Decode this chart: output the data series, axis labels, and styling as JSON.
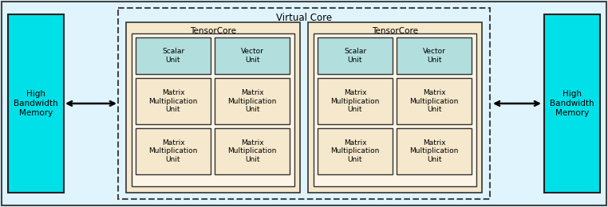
{
  "bg_color": "#dff4fc",
  "outer_rect_color": "#dff4fc",
  "outer_border_color": "#444444",
  "hbm_color": "#00e0e8",
  "hbm_border": "#222222",
  "hbm_text": "High\nBandwidth\nMemory",
  "virtual_core_bg": "#dff4fc",
  "virtual_core_border": "#444444",
  "virtual_core_label": "Virtual Core",
  "tensor_core_bg": "#f5e8cc",
  "tensor_core_border": "#333333",
  "tensor_core_label": "TensorCore",
  "inner_grid_bg": "#fdf5e6",
  "inner_grid_border": "#333333",
  "scalar_vector_bg": "#b2dede",
  "scalar_vector_border": "#333333",
  "mmu_bg": "#f5e8cc",
  "mmu_border": "#333333",
  "scalar_label": "Scalar\nUnit",
  "vector_label": "Vector\nUnit",
  "mmu_label": "Matrix\nMultiplication\nUnit",
  "font_size": 6.5,
  "label_font_size": 7.5,
  "vc_label_fontsize": 8.5
}
